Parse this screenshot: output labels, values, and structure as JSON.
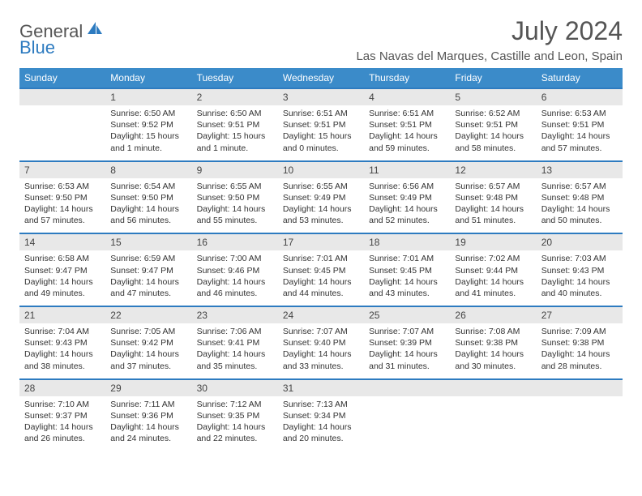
{
  "brand": {
    "part1": "General",
    "part2": "Blue"
  },
  "title": "July 2024",
  "location": "Las Navas del Marques, Castille and Leon, Spain",
  "header_bg": "#3b8bc9",
  "accent_line": "#2d7bc0",
  "daynum_bg": "#e8e8e8",
  "text_color": "#333333",
  "days_of_week": [
    "Sunday",
    "Monday",
    "Tuesday",
    "Wednesday",
    "Thursday",
    "Friday",
    "Saturday"
  ],
  "weeks": [
    [
      null,
      {
        "n": "1",
        "sr": "Sunrise: 6:50 AM",
        "ss": "Sunset: 9:52 PM",
        "d1": "Daylight: 15 hours",
        "d2": "and 1 minute."
      },
      {
        "n": "2",
        "sr": "Sunrise: 6:50 AM",
        "ss": "Sunset: 9:51 PM",
        "d1": "Daylight: 15 hours",
        "d2": "and 1 minute."
      },
      {
        "n": "3",
        "sr": "Sunrise: 6:51 AM",
        "ss": "Sunset: 9:51 PM",
        "d1": "Daylight: 15 hours",
        "d2": "and 0 minutes."
      },
      {
        "n": "4",
        "sr": "Sunrise: 6:51 AM",
        "ss": "Sunset: 9:51 PM",
        "d1": "Daylight: 14 hours",
        "d2": "and 59 minutes."
      },
      {
        "n": "5",
        "sr": "Sunrise: 6:52 AM",
        "ss": "Sunset: 9:51 PM",
        "d1": "Daylight: 14 hours",
        "d2": "and 58 minutes."
      },
      {
        "n": "6",
        "sr": "Sunrise: 6:53 AM",
        "ss": "Sunset: 9:51 PM",
        "d1": "Daylight: 14 hours",
        "d2": "and 57 minutes."
      }
    ],
    [
      {
        "n": "7",
        "sr": "Sunrise: 6:53 AM",
        "ss": "Sunset: 9:50 PM",
        "d1": "Daylight: 14 hours",
        "d2": "and 57 minutes."
      },
      {
        "n": "8",
        "sr": "Sunrise: 6:54 AM",
        "ss": "Sunset: 9:50 PM",
        "d1": "Daylight: 14 hours",
        "d2": "and 56 minutes."
      },
      {
        "n": "9",
        "sr": "Sunrise: 6:55 AM",
        "ss": "Sunset: 9:50 PM",
        "d1": "Daylight: 14 hours",
        "d2": "and 55 minutes."
      },
      {
        "n": "10",
        "sr": "Sunrise: 6:55 AM",
        "ss": "Sunset: 9:49 PM",
        "d1": "Daylight: 14 hours",
        "d2": "and 53 minutes."
      },
      {
        "n": "11",
        "sr": "Sunrise: 6:56 AM",
        "ss": "Sunset: 9:49 PM",
        "d1": "Daylight: 14 hours",
        "d2": "and 52 minutes."
      },
      {
        "n": "12",
        "sr": "Sunrise: 6:57 AM",
        "ss": "Sunset: 9:48 PM",
        "d1": "Daylight: 14 hours",
        "d2": "and 51 minutes."
      },
      {
        "n": "13",
        "sr": "Sunrise: 6:57 AM",
        "ss": "Sunset: 9:48 PM",
        "d1": "Daylight: 14 hours",
        "d2": "and 50 minutes."
      }
    ],
    [
      {
        "n": "14",
        "sr": "Sunrise: 6:58 AM",
        "ss": "Sunset: 9:47 PM",
        "d1": "Daylight: 14 hours",
        "d2": "and 49 minutes."
      },
      {
        "n": "15",
        "sr": "Sunrise: 6:59 AM",
        "ss": "Sunset: 9:47 PM",
        "d1": "Daylight: 14 hours",
        "d2": "and 47 minutes."
      },
      {
        "n": "16",
        "sr": "Sunrise: 7:00 AM",
        "ss": "Sunset: 9:46 PM",
        "d1": "Daylight: 14 hours",
        "d2": "and 46 minutes."
      },
      {
        "n": "17",
        "sr": "Sunrise: 7:01 AM",
        "ss": "Sunset: 9:45 PM",
        "d1": "Daylight: 14 hours",
        "d2": "and 44 minutes."
      },
      {
        "n": "18",
        "sr": "Sunrise: 7:01 AM",
        "ss": "Sunset: 9:45 PM",
        "d1": "Daylight: 14 hours",
        "d2": "and 43 minutes."
      },
      {
        "n": "19",
        "sr": "Sunrise: 7:02 AM",
        "ss": "Sunset: 9:44 PM",
        "d1": "Daylight: 14 hours",
        "d2": "and 41 minutes."
      },
      {
        "n": "20",
        "sr": "Sunrise: 7:03 AM",
        "ss": "Sunset: 9:43 PM",
        "d1": "Daylight: 14 hours",
        "d2": "and 40 minutes."
      }
    ],
    [
      {
        "n": "21",
        "sr": "Sunrise: 7:04 AM",
        "ss": "Sunset: 9:43 PM",
        "d1": "Daylight: 14 hours",
        "d2": "and 38 minutes."
      },
      {
        "n": "22",
        "sr": "Sunrise: 7:05 AM",
        "ss": "Sunset: 9:42 PM",
        "d1": "Daylight: 14 hours",
        "d2": "and 37 minutes."
      },
      {
        "n": "23",
        "sr": "Sunrise: 7:06 AM",
        "ss": "Sunset: 9:41 PM",
        "d1": "Daylight: 14 hours",
        "d2": "and 35 minutes."
      },
      {
        "n": "24",
        "sr": "Sunrise: 7:07 AM",
        "ss": "Sunset: 9:40 PM",
        "d1": "Daylight: 14 hours",
        "d2": "and 33 minutes."
      },
      {
        "n": "25",
        "sr": "Sunrise: 7:07 AM",
        "ss": "Sunset: 9:39 PM",
        "d1": "Daylight: 14 hours",
        "d2": "and 31 minutes."
      },
      {
        "n": "26",
        "sr": "Sunrise: 7:08 AM",
        "ss": "Sunset: 9:38 PM",
        "d1": "Daylight: 14 hours",
        "d2": "and 30 minutes."
      },
      {
        "n": "27",
        "sr": "Sunrise: 7:09 AM",
        "ss": "Sunset: 9:38 PM",
        "d1": "Daylight: 14 hours",
        "d2": "and 28 minutes."
      }
    ],
    [
      {
        "n": "28",
        "sr": "Sunrise: 7:10 AM",
        "ss": "Sunset: 9:37 PM",
        "d1": "Daylight: 14 hours",
        "d2": "and 26 minutes."
      },
      {
        "n": "29",
        "sr": "Sunrise: 7:11 AM",
        "ss": "Sunset: 9:36 PM",
        "d1": "Daylight: 14 hours",
        "d2": "and 24 minutes."
      },
      {
        "n": "30",
        "sr": "Sunrise: 7:12 AM",
        "ss": "Sunset: 9:35 PM",
        "d1": "Daylight: 14 hours",
        "d2": "and 22 minutes."
      },
      {
        "n": "31",
        "sr": "Sunrise: 7:13 AM",
        "ss": "Sunset: 9:34 PM",
        "d1": "Daylight: 14 hours",
        "d2": "and 20 minutes."
      },
      null,
      null,
      null
    ]
  ]
}
